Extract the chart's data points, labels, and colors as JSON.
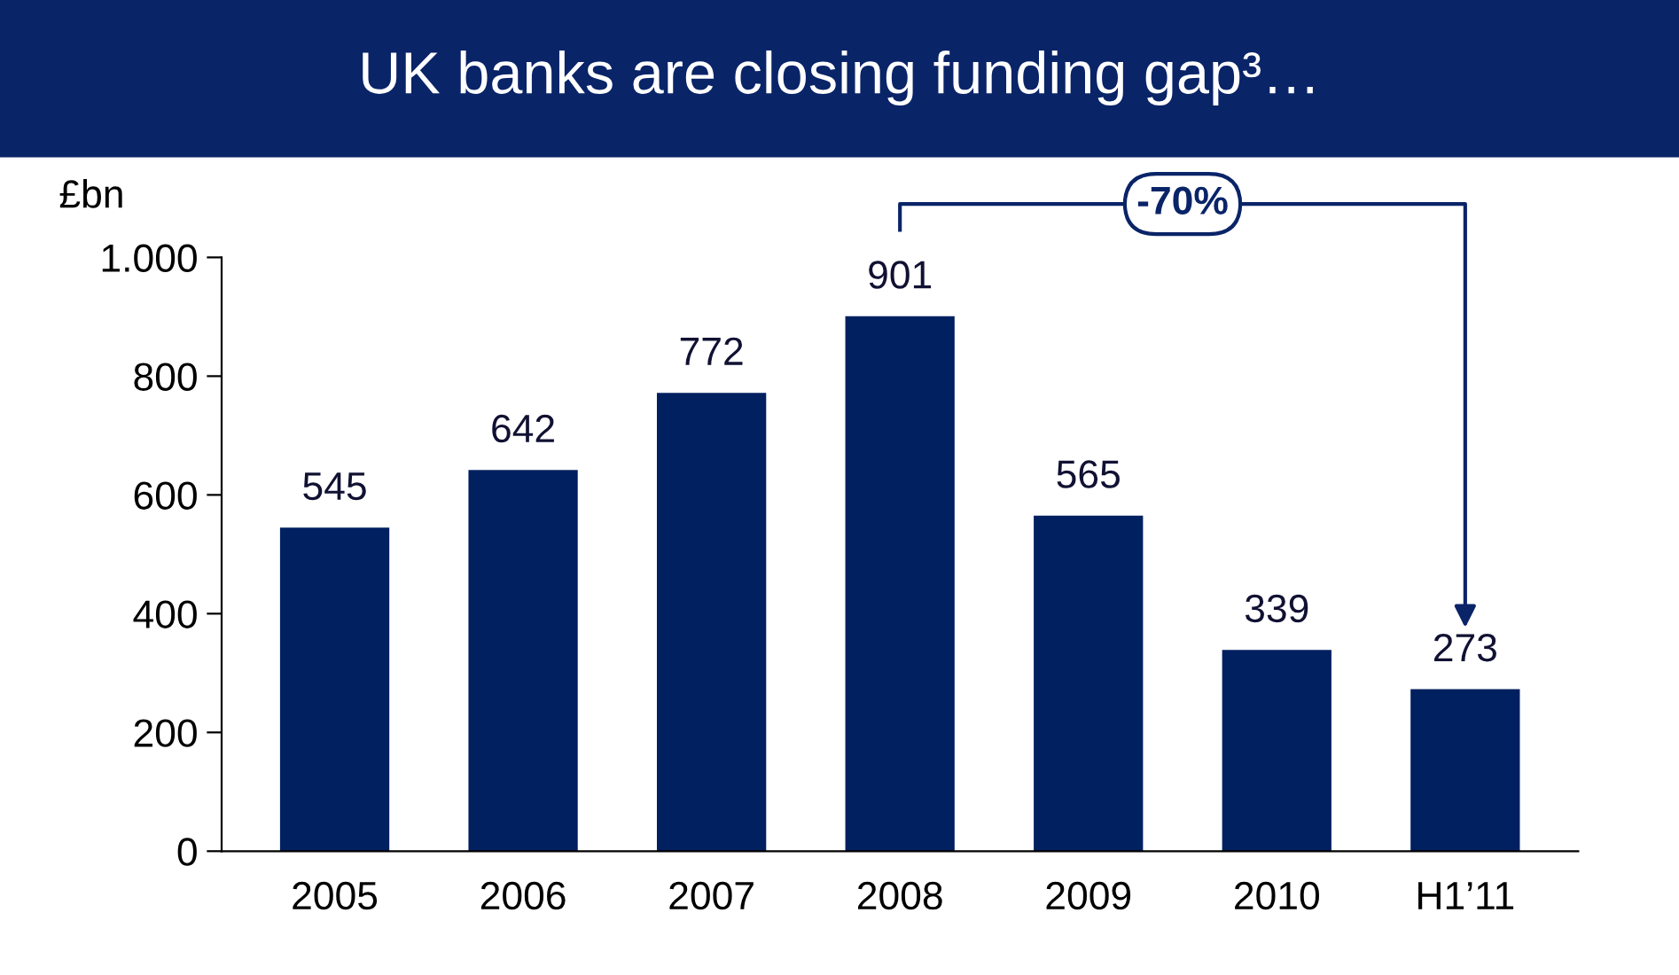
{
  "chart_data": {
    "type": "bar",
    "title": "UK banks are closing funding gap³…",
    "ylabel": "£bn",
    "categories": [
      "2005",
      "2006",
      "2007",
      "2008",
      "2009",
      "2010",
      "H1’11"
    ],
    "values": [
      545,
      642,
      772,
      901,
      565,
      339,
      273
    ],
    "color": "#002060",
    "ylim": [
      0,
      1000
    ],
    "yticks": [
      0,
      200,
      400,
      600,
      800,
      {
        "value": 1000,
        "label": "1.000"
      }
    ],
    "data_labels": true,
    "grid": false,
    "legend": false,
    "annotations": [
      "-70%"
    ]
  }
}
